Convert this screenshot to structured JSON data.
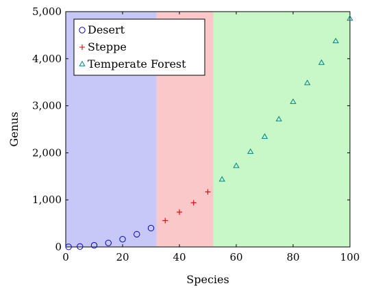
{
  "chart_data": {
    "type": "scatter",
    "xlabel": "Species",
    "ylabel": "Genus",
    "xlim": [
      0,
      100
    ],
    "ylim": [
      0,
      5000
    ],
    "x_ticks": [
      0,
      20,
      40,
      60,
      80,
      100
    ],
    "y_ticks": [
      0,
      1000,
      2000,
      3000,
      4000,
      5000
    ],
    "x_tick_labels": [
      "0",
      "20",
      "40",
      "60",
      "80",
      "100"
    ],
    "y_tick_labels": [
      "0",
      "1,000",
      "2,000",
      "3,000",
      "4,000",
      "5,000"
    ],
    "grid": false,
    "legend_position": "top-left",
    "regions": [
      {
        "name": "Desert",
        "x_start": 0,
        "x_end": 32,
        "color": "#c8c8f8"
      },
      {
        "name": "Steppe",
        "x_start": 32,
        "x_end": 52,
        "color": "#fac8c8"
      },
      {
        "name": "Temperate Forest",
        "x_start": 52,
        "x_end": 100,
        "color": "#c8f8c8"
      }
    ],
    "series": [
      {
        "name": "Desert",
        "marker": "circle",
        "color": "#0000cc",
        "x": [
          1,
          5,
          10,
          15,
          20,
          25,
          30
        ],
        "y": [
          2,
          10,
          35,
          85,
          165,
          270,
          400
        ]
      },
      {
        "name": "Steppe",
        "marker": "plus",
        "color": "#e00000",
        "x": [
          35,
          40,
          45,
          50
        ],
        "y": [
          560,
          740,
          940,
          1170
        ]
      },
      {
        "name": "Temperate Forest",
        "marker": "triangle",
        "color": "#008080",
        "x": [
          55,
          60,
          65,
          70,
          75,
          80,
          85,
          90,
          95,
          100
        ],
        "y": [
          1430,
          1720,
          2020,
          2340,
          2710,
          3080,
          3480,
          3910,
          4370,
          4850
        ]
      }
    ]
  }
}
